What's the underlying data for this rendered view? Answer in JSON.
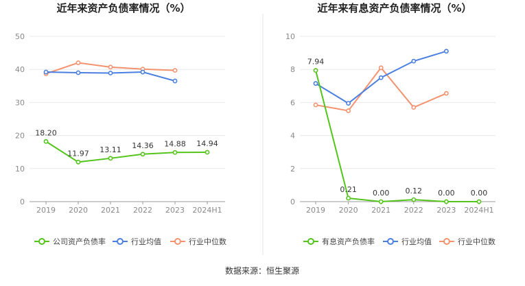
{
  "source": "数据来源：恒生聚源",
  "chart_data": [
    {
      "type": "line",
      "title": "近年来资产负债率情况（%）",
      "categories": [
        "2019",
        "2020",
        "2021",
        "2022",
        "2023",
        "2024H1"
      ],
      "ylim": [
        0,
        50
      ],
      "yticks": [
        "0",
        "10",
        "20",
        "30",
        "40",
        "50"
      ],
      "grid": true,
      "legend_position": "bottom",
      "series": [
        {
          "name": "公司资产负债率",
          "color": "#52c41a",
          "values": [
            18.2,
            11.97,
            13.11,
            14.36,
            14.88,
            14.94
          ],
          "labels": [
            "18.20",
            "11.97",
            "13.11",
            "14.36",
            "14.88",
            "14.94"
          ]
        },
        {
          "name": "行业均值",
          "color": "#4a7fe0",
          "values": [
            39.2,
            39.0,
            38.9,
            39.2,
            36.5,
            null
          ]
        },
        {
          "name": "行业中位数",
          "color": "#f4926f",
          "values": [
            38.7,
            42.0,
            40.7,
            40.1,
            39.7,
            null
          ]
        }
      ]
    },
    {
      "type": "line",
      "title": "近年来有息资产负债率情况（%）",
      "categories": [
        "2019",
        "2020",
        "2021",
        "2022",
        "2023",
        "2024H1"
      ],
      "ylim": [
        0,
        10
      ],
      "yticks": [
        "0",
        "2",
        "4",
        "6",
        "8",
        "10"
      ],
      "grid": true,
      "legend_position": "bottom",
      "series": [
        {
          "name": "有息资产负债率",
          "color": "#52c41a",
          "values": [
            7.94,
            0.21,
            0.0,
            0.12,
            0.0,
            0.0
          ],
          "labels": [
            "7.94",
            "0.21",
            "0.00",
            "0.12",
            "0.00",
            "0.00"
          ]
        },
        {
          "name": "行业均值",
          "color": "#4a7fe0",
          "values": [
            7.15,
            5.95,
            7.5,
            8.5,
            9.1,
            null
          ]
        },
        {
          "name": "行业中位数",
          "color": "#f4926f",
          "values": [
            5.85,
            5.5,
            8.1,
            5.7,
            6.55,
            null
          ]
        }
      ]
    }
  ]
}
